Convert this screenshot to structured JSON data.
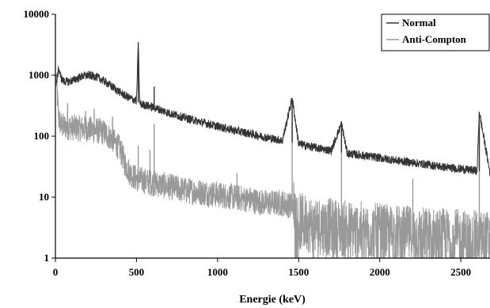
{
  "chart_data": {
    "type": "line",
    "title": "",
    "xlabel": "Energie (keV)",
    "ylabel": "",
    "xlim": [
      0,
      2680
    ],
    "ylim": [
      1,
      10000
    ],
    "yscale": "log",
    "grid": false,
    "legend_position": "top-right",
    "x_ticks": [
      0,
      500,
      1000,
      1500,
      2000,
      2500
    ],
    "x_tick_labels": [
      "0",
      "500",
      "1000",
      "1500",
      "2000",
      "2500"
    ],
    "y_ticks": [
      1,
      10,
      100,
      1000,
      10000
    ],
    "y_tick_labels": [
      "1",
      "10",
      "100",
      "1000",
      "10000"
    ],
    "series": [
      {
        "name": "Normal",
        "color": "#333333",
        "x": [
          5,
          20,
          35,
          50,
          80,
          120,
          160,
          200,
          250,
          300,
          350,
          400,
          450,
          500,
          511,
          520,
          600,
          700,
          800,
          900,
          1000,
          1100,
          1200,
          1300,
          1400,
          1460,
          1500,
          1600,
          1700,
          1764,
          1800,
          1900,
          2000,
          2100,
          2200,
          2300,
          2400,
          2500,
          2600,
          2614,
          2680
        ],
        "y": [
          700,
          1300,
          900,
          800,
          780,
          850,
          950,
          1000,
          950,
          800,
          650,
          520,
          430,
          380,
          3500,
          340,
          300,
          240,
          200,
          170,
          145,
          125,
          110,
          95,
          85,
          420,
          75,
          65,
          58,
          160,
          52,
          48,
          44,
          40,
          37,
          34,
          31,
          29,
          27,
          250,
          25
        ],
        "peaks": [
          {
            "x": 511,
            "y": 3500
          },
          {
            "x": 609,
            "y": 650
          },
          {
            "x": 1460,
            "y": 420
          },
          {
            "x": 1764,
            "y": 160
          },
          {
            "x": 2614,
            "y": 250
          }
        ]
      },
      {
        "name": "Anti-Compton",
        "color": "#999999",
        "x": [
          5,
          20,
          35,
          50,
          100,
          150,
          200,
          250,
          300,
          350,
          400,
          430,
          460,
          500,
          600,
          700,
          800,
          900,
          1000,
          1100,
          1200,
          1300,
          1400,
          1470,
          1500,
          1600,
          1700,
          1800,
          1900,
          2000,
          2100,
          2200,
          2300,
          2400,
          2500,
          2600,
          2680
        ],
        "y": [
          900,
          200,
          150,
          145,
          140,
          135,
          130,
          125,
          115,
          90,
          60,
          35,
          25,
          20,
          17,
          15,
          13,
          12,
          11,
          10,
          9,
          8,
          8,
          7,
          4,
          3.5,
          3.2,
          3.0,
          2.8,
          2.6,
          2.5,
          2.4,
          2.3,
          2.2,
          2.1,
          2.0,
          2.0
        ],
        "peaks": [
          {
            "x": 75,
            "y": 350
          },
          {
            "x": 186,
            "y": 260
          },
          {
            "x": 239,
            "y": 280
          },
          {
            "x": 352,
            "y": 210
          },
          {
            "x": 511,
            "y": 70
          },
          {
            "x": 583,
            "y": 60
          },
          {
            "x": 609,
            "y": 160
          },
          {
            "x": 1120,
            "y": 25
          },
          {
            "x": 1460,
            "y": 230
          },
          {
            "x": 1764,
            "y": 110
          },
          {
            "x": 2204,
            "y": 20
          },
          {
            "x": 2614,
            "y": 140
          }
        ]
      }
    ]
  }
}
